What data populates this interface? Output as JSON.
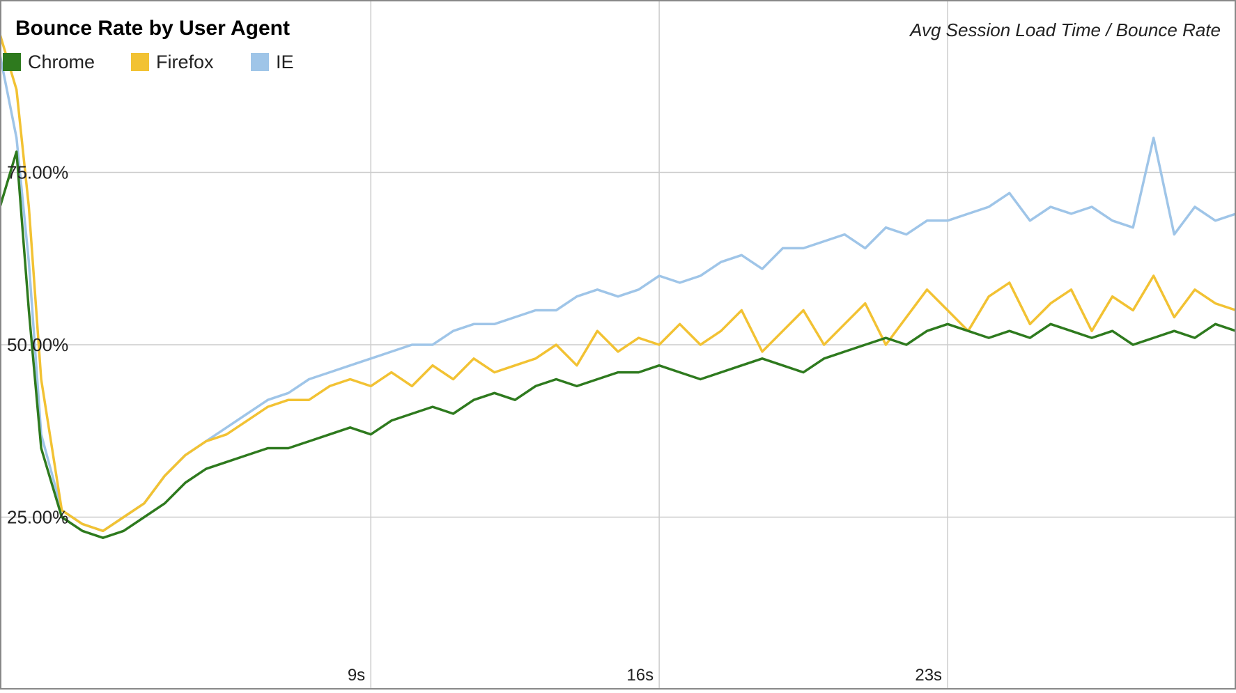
{
  "chart_data": {
    "type": "line",
    "title": "Bounce Rate by User Agent",
    "subtitle": "Avg Session Load Time / Bounce Rate",
    "xlabel": "",
    "ylabel": "",
    "x_range": [
      0,
      30
    ],
    "ylim": [
      0,
      100
    ],
    "x_ticks": [
      {
        "value": 9,
        "label": "9s"
      },
      {
        "value": 16,
        "label": "16s"
      },
      {
        "value": 23,
        "label": "23s"
      }
    ],
    "y_ticks": [
      {
        "value": 25,
        "label": "25.00%"
      },
      {
        "value": 50,
        "label": "50.00%"
      },
      {
        "value": 75,
        "label": "75.00%"
      }
    ],
    "grid": true,
    "legend": "top-left",
    "x": [
      0,
      0.4,
      0.7,
      1,
      1.5,
      2,
      2.5,
      3,
      3.5,
      4,
      4.5,
      5,
      5.5,
      6,
      6.5,
      7,
      7.5,
      8,
      8.5,
      9,
      9.5,
      10,
      10.5,
      11,
      11.5,
      12,
      12.5,
      13,
      13.5,
      14,
      14.5,
      15,
      15.5,
      16,
      16.5,
      17,
      17.5,
      18,
      18.5,
      19,
      19.5,
      20,
      20.5,
      21,
      21.5,
      22,
      22.5,
      23,
      23.5,
      24,
      24.5,
      25,
      25.5,
      26,
      26.5,
      27,
      27.5,
      28,
      28.5,
      29,
      29.5,
      30
    ],
    "series": [
      {
        "name": "Chrome",
        "color": "#2e7a1e",
        "values": [
          70,
          78,
          55,
          35,
          25,
          23,
          22,
          23,
          25,
          27,
          30,
          32,
          33,
          34,
          35,
          35,
          36,
          37,
          38,
          37,
          39,
          40,
          41,
          40,
          42,
          43,
          42,
          44,
          45,
          44,
          45,
          46,
          46,
          47,
          46,
          45,
          46,
          47,
          48,
          47,
          46,
          48,
          49,
          50,
          51,
          50,
          52,
          53,
          52,
          51,
          52,
          51,
          53,
          52,
          51,
          52,
          50,
          51,
          52,
          51,
          53,
          52
        ]
      },
      {
        "name": "Firefox",
        "color": "#f2c233",
        "values": [
          95,
          87,
          70,
          45,
          26,
          24,
          23,
          25,
          27,
          31,
          34,
          36,
          37,
          39,
          41,
          42,
          42,
          44,
          45,
          44,
          46,
          44,
          47,
          45,
          48,
          46,
          47,
          48,
          50,
          47,
          52,
          49,
          51,
          50,
          53,
          50,
          52,
          55,
          49,
          52,
          55,
          50,
          53,
          56,
          50,
          54,
          58,
          55,
          52,
          57,
          59,
          53,
          56,
          58,
          52,
          57,
          55,
          60,
          54,
          58,
          56,
          55
        ]
      },
      {
        "name": "IE",
        "color": "#9fc5e8",
        "values": [
          92,
          80,
          62,
          37,
          26,
          24,
          23,
          25,
          27,
          31,
          34,
          36,
          38,
          40,
          42,
          43,
          45,
          46,
          47,
          48,
          49,
          50,
          50,
          52,
          53,
          53,
          54,
          55,
          55,
          57,
          58,
          57,
          58,
          60,
          59,
          60,
          62,
          63,
          61,
          64,
          64,
          65,
          66,
          64,
          67,
          66,
          68,
          68,
          69,
          70,
          72,
          68,
          70,
          69,
          70,
          68,
          67,
          80,
          66,
          70,
          68,
          69
        ]
      }
    ]
  }
}
